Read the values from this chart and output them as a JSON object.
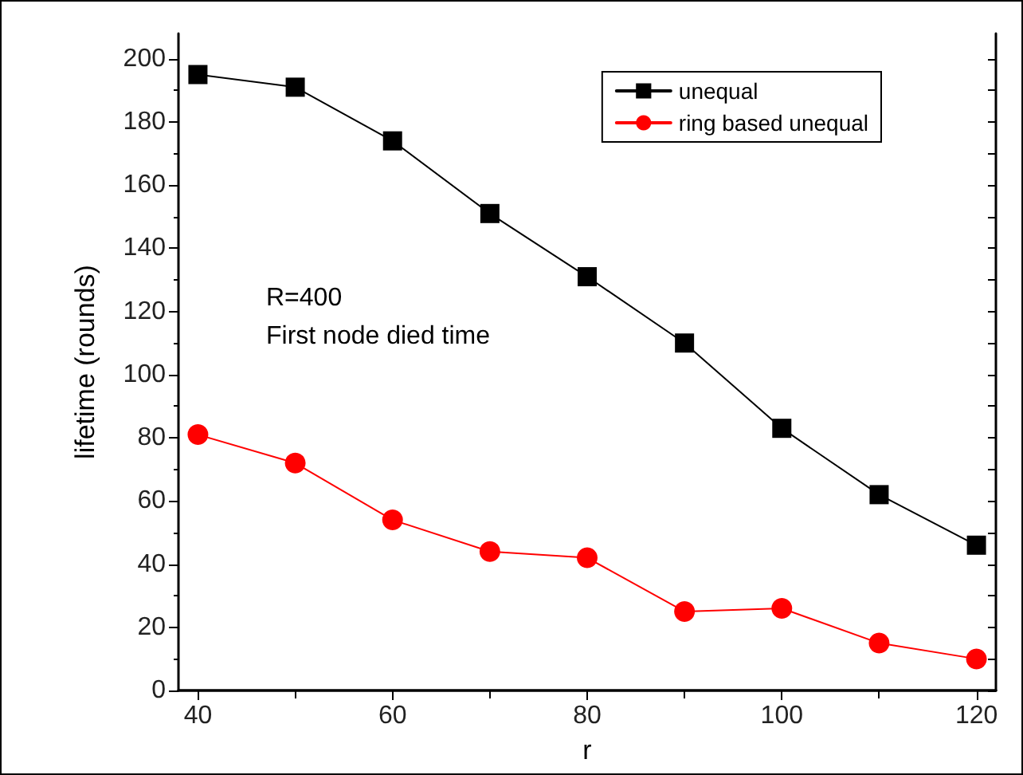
{
  "chart_data": {
    "type": "line",
    "xlabel": "r",
    "ylabel": "lifetime (rounds)",
    "x": [
      40,
      50,
      60,
      70,
      80,
      90,
      100,
      110,
      120
    ],
    "series": [
      {
        "name": "unequal",
        "color": "#000000",
        "marker": "square",
        "values": [
          195,
          191,
          174,
          151,
          131,
          110,
          83,
          62,
          46
        ]
      },
      {
        "name": "ring based unequal",
        "color": "#ff0000",
        "marker": "circle",
        "values": [
          81,
          72,
          54,
          44,
          42,
          25,
          26,
          15,
          10
        ]
      }
    ],
    "xlim": [
      38,
      122
    ],
    "xticks": [
      40,
      {
        "value": 50,
        "label": null
      },
      60,
      {
        "value": 70,
        "label": null
      },
      80,
      {
        "value": 90,
        "label": null
      },
      100,
      {
        "value": 110,
        "label": null
      },
      120
    ],
    "ylim": [
      0,
      208
    ],
    "yticks": [
      0,
      {
        "value": 10,
        "label": null
      },
      20,
      {
        "value": 30,
        "label": null
      },
      40,
      {
        "value": 50,
        "label": null
      },
      60,
      {
        "value": 70,
        "label": null
      },
      80,
      {
        "value": 90,
        "label": null
      },
      100,
      {
        "value": 110,
        "label": null
      },
      120,
      {
        "value": 130,
        "label": null
      },
      140,
      {
        "value": 150,
        "label": null
      },
      160,
      {
        "value": 170,
        "label": null
      },
      180,
      {
        "value": 190,
        "label": null
      },
      200
    ],
    "annotations": [
      "R=400",
      "First node died time"
    ],
    "legend": "top right",
    "grid": false,
    "line_style": "solid"
  }
}
